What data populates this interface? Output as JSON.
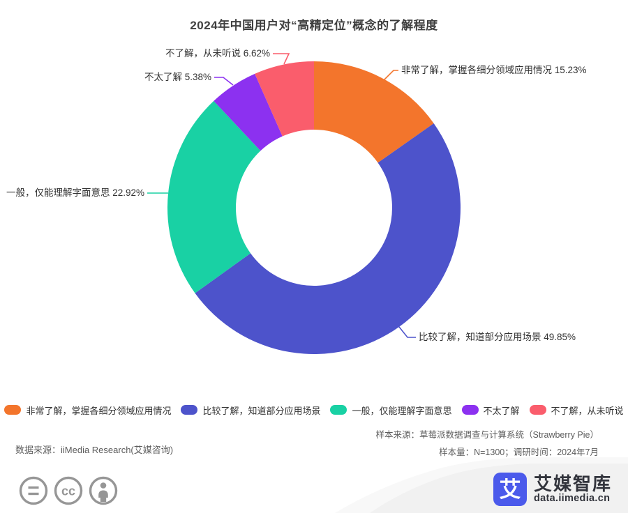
{
  "chart_data": {
    "type": "pie",
    "donut": true,
    "title": "2024年中国用户对“高精定位”概念的了解程度",
    "legend_position": "bottom",
    "slices": [
      {
        "label": "非常了解，掌握各细分领域应用情况",
        "value": 15.23,
        "color": "#f3752c",
        "callout": "非常了解，掌握各细分领域应用情况 15.23%"
      },
      {
        "label": "比较了解，知道部分应用场景",
        "value": 49.85,
        "color": "#4d53cb",
        "callout": "比较了解，知道部分应用场景 49.85%"
      },
      {
        "label": "一般，仅能理解字面意思",
        "value": 22.92,
        "color": "#19d1a4",
        "callout": "一般，仅能理解字面意思 22.92%"
      },
      {
        "label": "不太了解",
        "value": 5.38,
        "color": "#8c31f0",
        "callout": "不太了解 5.38%"
      },
      {
        "label": "不了解，从未听说",
        "value": 6.62,
        "color": "#fa5d6c",
        "callout": "不了解，从未听说 6.62%"
      }
    ]
  },
  "footer": {
    "data_source": "数据来源：iiMedia Research(艾媒咨询)",
    "sample_source": "样本来源：草莓派数据调查与计算系统（Strawberry Pie）",
    "sample_size": "样本量：N=1300；调研时间：2024年7月"
  },
  "branding": {
    "logo_char": "艾",
    "logo_name": "艾媒智库",
    "logo_url": "data.iimedia.cn",
    "logo_color": "#4b5aeb"
  },
  "license_icons": [
    "equals-icon",
    "cc-icon",
    "person-icon"
  ]
}
